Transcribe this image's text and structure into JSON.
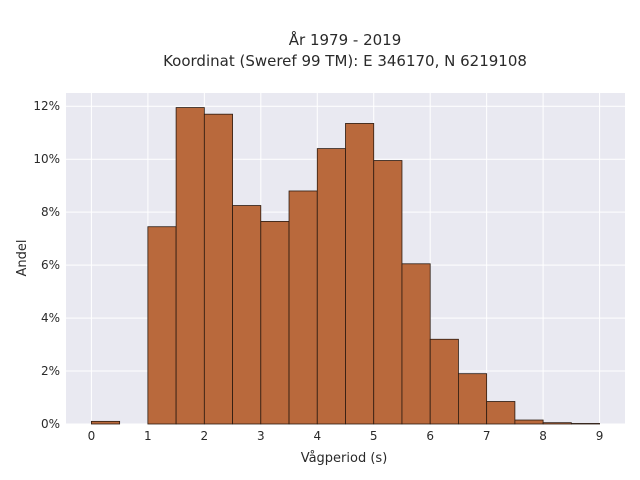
{
  "chart_data": {
    "type": "bar",
    "title": "År 1979 - 2019",
    "subtitle": "Koordinat (Sweref 99 TM): E 346170, N 6219108",
    "xlabel": "Vågperiod (s)",
    "ylabel": "Andel",
    "bin_width": 0.5,
    "bin_edges": [
      0,
      0.5,
      1,
      1.5,
      2,
      2.5,
      3,
      3.5,
      4,
      4.5,
      5,
      5.5,
      6,
      6.5,
      7,
      7.5,
      8,
      8.5,
      9
    ],
    "values": [
      0.1,
      0,
      7.45,
      11.95,
      11.7,
      8.25,
      7.65,
      8.8,
      10.4,
      11.35,
      9.95,
      6.05,
      3.2,
      1.9,
      0.85,
      0.15,
      0.05,
      0.02
    ],
    "xlim": [
      -0.45,
      9.45
    ],
    "ylim": [
      0,
      12.5
    ],
    "x_ticks": [
      0,
      1,
      2,
      3,
      4,
      5,
      6,
      7,
      8,
      9
    ],
    "x_tick_labels": [
      "0",
      "1",
      "2",
      "3",
      "4",
      "5",
      "6",
      "7",
      "8",
      "9"
    ],
    "y_ticks": [
      0,
      2,
      4,
      6,
      8,
      10,
      12
    ],
    "y_tick_labels": [
      "0%",
      "2%",
      "4%",
      "6%",
      "8%",
      "10%",
      "12%"
    ],
    "grid": true,
    "colors": {
      "bar_fill": "#b9693c",
      "bar_edge": "#2b1a10",
      "plot_background": "#e9e9f1",
      "grid": "#ffffff"
    }
  }
}
